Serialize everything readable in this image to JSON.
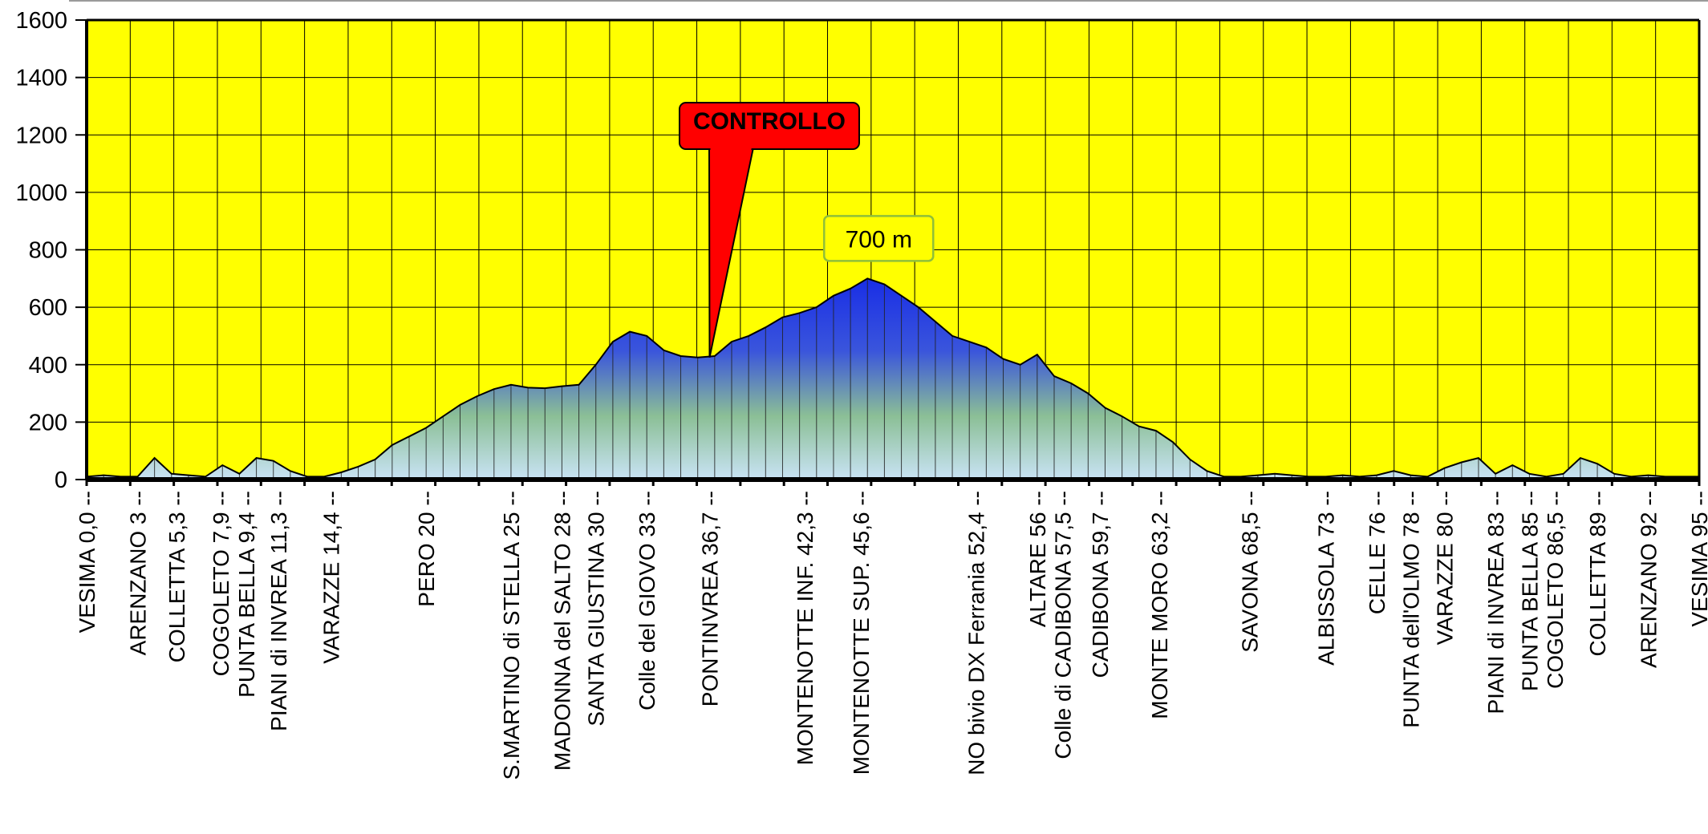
{
  "chart_data": {
    "type": "area",
    "title": "",
    "xlabel": "",
    "ylabel": "",
    "ylim": [
      0,
      1600
    ],
    "xlim": [
      0,
      95
    ],
    "y_ticks": [
      "0",
      "200",
      "400",
      "600",
      "800",
      "1000",
      "1200",
      "1400",
      "1600"
    ],
    "grid": true,
    "legend": "none",
    "colors": {
      "plot_background": "#ffff00",
      "area_top": "#1a2fe6",
      "area_mid": "#8bbf96",
      "area_bottom": "#c9e3f5",
      "outline": "#000000",
      "callout_fill": "#ff0000",
      "peak_label_border": "#8fbf3a"
    },
    "annotations": {
      "callout": {
        "text": "CONTROLLO",
        "x": 36.7,
        "y": 425
      },
      "peak_label": {
        "text": "700 m",
        "x": 46.0,
        "y": 700
      }
    },
    "waypoints": [
      {
        "x": 0.0,
        "label": "VESIMA 0,0"
      },
      {
        "x": 3.0,
        "label": "ARENZANO 3"
      },
      {
        "x": 5.3,
        "label": "COLLETTA 5,3"
      },
      {
        "x": 7.9,
        "label": "COGOLETO 7,9"
      },
      {
        "x": 9.4,
        "label": "PUNTA BELLA 9,4"
      },
      {
        "x": 11.3,
        "label": "PIANI di INVREA 11,3"
      },
      {
        "x": 14.4,
        "label": "VARAZZE 14,4"
      },
      {
        "x": 20.0,
        "label": "PERO 20"
      },
      {
        "x": 25.0,
        "label": "S.MARTINO di STELLA 25"
      },
      {
        "x": 28.0,
        "label": "MADONNA del SALTO 28"
      },
      {
        "x": 30.0,
        "label": "SANTA GIUSTINA 30"
      },
      {
        "x": 33.0,
        "label": "Colle del GIOVO 33"
      },
      {
        "x": 36.7,
        "label": "PONTINVREA 36,7"
      },
      {
        "x": 42.3,
        "label": "MONTENOTTE INF. 42,3"
      },
      {
        "x": 45.6,
        "label": "MONTENOTTE SUP. 45,6"
      },
      {
        "x": 52.4,
        "label": "NO bivio DX Ferrania 52,4"
      },
      {
        "x": 56.0,
        "label": "ALTARE 56"
      },
      {
        "x": 57.5,
        "label": "Colle di CADIBONA 57,5"
      },
      {
        "x": 59.7,
        "label": "CADIBONA 59,7"
      },
      {
        "x": 63.2,
        "label": "MONTE MORO 63,2"
      },
      {
        "x": 68.5,
        "label": "SAVONA 68,5"
      },
      {
        "x": 73.0,
        "label": "ALBISSOLA 73"
      },
      {
        "x": 76.0,
        "label": "CELLE 76"
      },
      {
        "x": 78.0,
        "label": "PUNTA dell'OLMO 78"
      },
      {
        "x": 80.0,
        "label": "VARAZZE 80"
      },
      {
        "x": 83.0,
        "label": "PIANI di INVREA 83"
      },
      {
        "x": 85.0,
        "label": "PUNTA BELLA 85"
      },
      {
        "x": 86.5,
        "label": "COGOLETO 86,5"
      },
      {
        "x": 89.0,
        "label": "COLLETTA 89"
      },
      {
        "x": 92.0,
        "label": "ARENZANO 92"
      },
      {
        "x": 95.0,
        "label": "VESIMA 95"
      }
    ],
    "profile": {
      "x": [
        0,
        1,
        2,
        3,
        4,
        5,
        6,
        7,
        8,
        9,
        10,
        11,
        12,
        13,
        14,
        15,
        16,
        17,
        18,
        19,
        20,
        21,
        22,
        23,
        24,
        25,
        26,
        27,
        28,
        29,
        30,
        31,
        32,
        33,
        34,
        35,
        36,
        37,
        38,
        39,
        40,
        41,
        42,
        43,
        44,
        45,
        46,
        47,
        48,
        49,
        50,
        51,
        52,
        53,
        54,
        55,
        56,
        57,
        58,
        59,
        60,
        61,
        62,
        63,
        64,
        65,
        66,
        67,
        68,
        69,
        70,
        71,
        72,
        73,
        74,
        75,
        76,
        77,
        78,
        79,
        80,
        81,
        82,
        83,
        84,
        85,
        86,
        87,
        88,
        89,
        90,
        91,
        92,
        93,
        94,
        95
      ],
      "y": [
        10,
        15,
        10,
        10,
        75,
        20,
        15,
        10,
        50,
        20,
        75,
        65,
        30,
        10,
        10,
        25,
        45,
        70,
        120,
        150,
        180,
        220,
        260,
        290,
        315,
        330,
        320,
        318,
        325,
        330,
        400,
        480,
        515,
        500,
        450,
        430,
        425,
        430,
        480,
        500,
        530,
        565,
        580,
        600,
        640,
        665,
        700,
        680,
        640,
        600,
        550,
        500,
        480,
        460,
        420,
        400,
        435,
        360,
        335,
        300,
        250,
        220,
        185,
        170,
        130,
        70,
        30,
        10,
        10,
        15,
        20,
        15,
        10,
        10,
        15,
        10,
        15,
        30,
        15,
        10,
        40,
        60,
        75,
        20,
        50,
        20,
        10,
        20,
        75,
        55,
        20,
        10,
        15,
        10,
        10,
        10
      ]
    }
  }
}
